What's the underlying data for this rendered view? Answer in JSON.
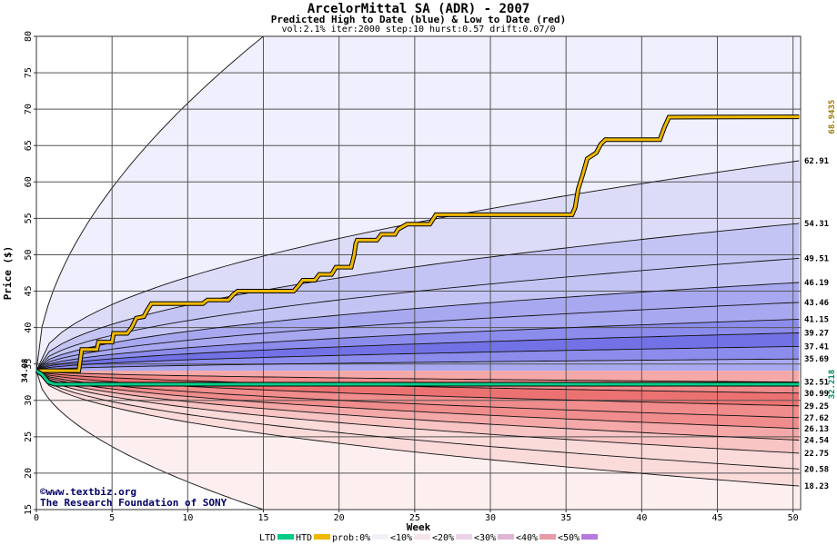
{
  "chart_data": {
    "type": "area",
    "title": "ArcelorMittal SA (ADR) - 2007",
    "subtitle": "Predicted High to Date (blue) &  Low to Date (red)",
    "params": "vol:2.1% iter:2000 step:10 hurst:0.57 drift:0.07/0",
    "xlabel": "Week",
    "ylabel": "Price ($)",
    "xlim": [
      0,
      50.5
    ],
    "ylim": [
      15,
      80
    ],
    "xticks": [
      0,
      5,
      10,
      15,
      20,
      25,
      30,
      35,
      40,
      45,
      50
    ],
    "yticks": [
      15,
      20,
      25,
      30,
      35,
      40,
      45,
      50,
      55,
      60,
      65,
      70,
      75,
      80
    ],
    "grid": true,
    "start_price_label": "34.08",
    "start_price": 34.08,
    "colors": {
      "blue": "#6a6ae8",
      "red": "#f05a5a",
      "htd": "#f0b800",
      "ltd": "#00cc88",
      "htd_label": "#a07800",
      "ltd_label": "#00886a",
      "grid": "#555555"
    },
    "envelope": {
      "high_end": 80,
      "low_end": 15,
      "high_reach_week": 15,
      "low_reach_week": 15
    },
    "high_levels": [
      {
        "label": "62.91",
        "value": 62.91,
        "band": "<10%"
      },
      {
        "label": "54.31",
        "value": 54.31,
        "band": "<20%"
      },
      {
        "label": "49.51",
        "value": 49.51,
        "band": "<20%"
      },
      {
        "label": "46.19",
        "value": 46.19,
        "band": "<30%"
      },
      {
        "label": "43.46",
        "value": 43.46,
        "band": "<30%"
      },
      {
        "label": "41.15",
        "value": 41.15,
        "band": "<40%"
      },
      {
        "label": "39.27",
        "value": 39.27,
        "band": "<50%"
      },
      {
        "label": "37.41",
        "value": 37.41,
        "band": "<40%"
      },
      {
        "label": "35.69",
        "value": 35.69,
        "band": "<30%"
      }
    ],
    "low_levels": [
      {
        "label": "32.51",
        "value": 32.51,
        "band": "<30%"
      },
      {
        "label": "30.99",
        "value": 30.99,
        "band": "<40%"
      },
      {
        "label": "29.25",
        "value": 29.25,
        "band": "<50%"
      },
      {
        "label": "27.62",
        "value": 27.62,
        "band": "<40%"
      },
      {
        "label": "26.13",
        "value": 26.13,
        "band": "<40%"
      },
      {
        "label": "24.54",
        "value": 24.54,
        "band": "<30%"
      },
      {
        "label": "22.75",
        "value": 22.75,
        "band": "<20%"
      },
      {
        "label": "20.58",
        "value": 20.58,
        "band": "<10%"
      },
      {
        "label": "18.23",
        "value": 18.23,
        "band": "<10%"
      }
    ],
    "series": [
      {
        "name": "HTD",
        "final_label": "68.9435",
        "final": 68.9435,
        "points": [
          [
            0,
            34.08
          ],
          [
            2.8,
            34.08
          ],
          [
            3,
            37
          ],
          [
            4,
            37
          ],
          [
            4.1,
            38
          ],
          [
            5,
            38
          ],
          [
            5.1,
            39.2
          ],
          [
            6,
            39.2
          ],
          [
            6.3,
            40
          ],
          [
            6.6,
            41.3
          ],
          [
            7.1,
            41.5
          ],
          [
            7.3,
            42.3
          ],
          [
            7.6,
            43.3
          ],
          [
            11,
            43.3
          ],
          [
            11.3,
            43.8
          ],
          [
            12.7,
            43.8
          ],
          [
            13,
            44.5
          ],
          [
            13.3,
            45
          ],
          [
            17,
            45
          ],
          [
            17.3,
            45.7
          ],
          [
            17.6,
            46.5
          ],
          [
            18.4,
            46.5
          ],
          [
            18.7,
            47.3
          ],
          [
            19.5,
            47.3
          ],
          [
            19.8,
            48.3
          ],
          [
            20.8,
            48.3
          ],
          [
            21,
            50
          ],
          [
            21.1,
            51.5
          ],
          [
            21.2,
            52
          ],
          [
            22.5,
            52
          ],
          [
            22.8,
            52.8
          ],
          [
            23.7,
            52.8
          ],
          [
            23.9,
            53.5
          ],
          [
            24.5,
            54.2
          ],
          [
            26,
            54.2
          ],
          [
            26.4,
            55.5
          ],
          [
            35.4,
            55.5
          ],
          [
            35.6,
            56.5
          ],
          [
            35.8,
            59
          ],
          [
            36.1,
            61
          ],
          [
            36.4,
            63.2
          ],
          [
            37,
            64
          ],
          [
            37.3,
            65.2
          ],
          [
            37.6,
            65.8
          ],
          [
            41.2,
            65.8
          ],
          [
            41.5,
            67.5
          ],
          [
            41.8,
            68.9
          ],
          [
            50.4,
            68.9435
          ]
        ]
      },
      {
        "name": "LTD",
        "final_label": "32.218",
        "final": 32.218,
        "points": [
          [
            0,
            34.08
          ],
          [
            0.4,
            33.5
          ],
          [
            0.8,
            32.5
          ],
          [
            1.2,
            32.218
          ],
          [
            50.4,
            32.218
          ]
        ]
      }
    ],
    "legend": {
      "items": [
        {
          "label": "LTD"
        },
        {
          "label": "HTD"
        },
        {
          "label": "prob:0%"
        },
        {
          "label": "<10%"
        },
        {
          "label": "<20%"
        },
        {
          "label": "<30%"
        },
        {
          "label": "<40%"
        },
        {
          "label": "<50%"
        }
      ]
    },
    "credits": [
      "©www.textbiz.org",
      "The Research Foundation of SONY"
    ]
  }
}
